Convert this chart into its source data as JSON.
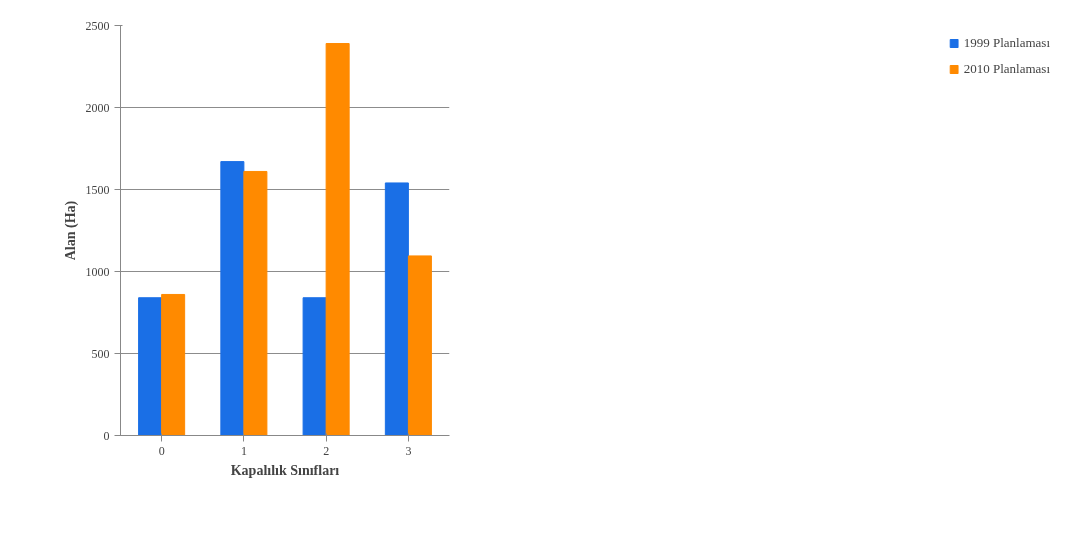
{
  "chart_data": {
    "type": "bar",
    "xlabel": "Kapalılık Sınıfları",
    "ylabel": "Alan (Ha)",
    "categories": [
      "0",
      "1",
      "2",
      "3"
    ],
    "series": [
      {
        "name": "1999 Planlaması",
        "color": "#1a6fe6",
        "values": [
          840,
          1670,
          840,
          1540
        ]
      },
      {
        "name": "2010 Planlaması",
        "color": "#ff8a00",
        "values": [
          860,
          1610,
          2390,
          1095
        ]
      }
    ],
    "ylim": [
      0,
      2500
    ],
    "yticks": [
      0,
      500,
      1000,
      1500,
      2000,
      2500
    ],
    "grid": "y",
    "legend": "right"
  }
}
